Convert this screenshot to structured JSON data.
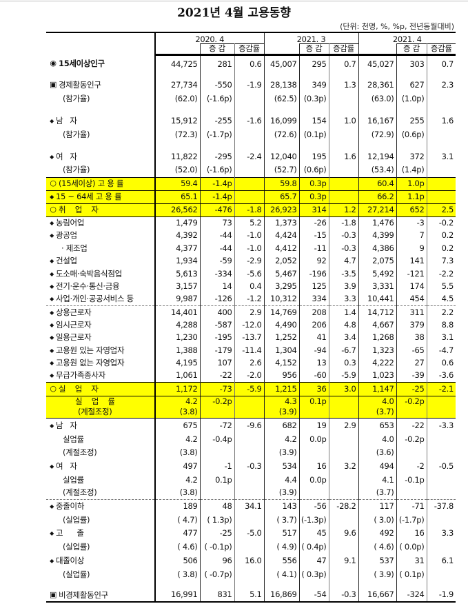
{
  "title": "2021년 4월 고용동향",
  "unit": "(단위: 천명, %, %p, 전년동월대비)",
  "highlight_color": "#ffff00",
  "header": {
    "periods": [
      "2020. 4",
      "2021. 3",
      "2021. 4"
    ],
    "change": "증 감",
    "change_rate": "증감률"
  },
  "rows": [
    {
      "marker": "◉",
      "label": "15세이상인구",
      "values": [
        "44,725",
        "281",
        "0.6",
        "45,007",
        "295",
        "0.7",
        "45,027",
        "303",
        "0.7"
      ]
    },
    {
      "marker": "▣",
      "label": "경제활동인구",
      "values": [
        "27,734",
        "-550",
        "-1.9",
        "28,138",
        "349",
        "1.3",
        "28,361",
        "627",
        "2.3"
      ]
    },
    {
      "marker": "",
      "label": "(참가율)",
      "values": [
        "(62.0)",
        "(-1.6p)",
        "",
        "(62.5)",
        "(0.3p)",
        "",
        "(63.0)",
        "(1.0p)",
        ""
      ]
    },
    {
      "marker": "◆",
      "label": "남   자",
      "values": [
        "15,912",
        "-255",
        "-1.6",
        "16,099",
        "154",
        "1.0",
        "16,167",
        "255",
        "1.6"
      ]
    },
    {
      "marker": "",
      "label": "(참가율)",
      "values": [
        "(72.3)",
        "(-1.7p)",
        "",
        "(72.6)",
        "(0.1p)",
        "",
        "(72.9)",
        "(0.6p)",
        ""
      ]
    },
    {
      "marker": "◆",
      "label": "여   자",
      "values": [
        "11,822",
        "-295",
        "-2.4",
        "12,040",
        "195",
        "1.6",
        "12,194",
        "372",
        "3.1"
      ]
    },
    {
      "marker": "",
      "label": "(참가율)",
      "values": [
        "(52.0)",
        "(-1.6p)",
        "",
        "(52.7)",
        "(0.6p)",
        "",
        "(53.4)",
        "(1.4p)",
        ""
      ]
    },
    {
      "marker": "○",
      "label": "(15세이상) 고 용 률",
      "highlight": true,
      "values": [
        "59.4",
        "-1.4p",
        "",
        "59.8",
        "0.3p",
        "",
        "60.4",
        "1.0p",
        ""
      ]
    },
    {
      "marker": "◆",
      "label": "15 ~ 64세 고 용 률",
      "highlight": true,
      "values": [
        "65.1",
        "-1.4p",
        "",
        "65.7",
        "0.3p",
        "",
        "66.2",
        "1.1p",
        ""
      ]
    },
    {
      "marker": "○",
      "label": "취    업    자",
      "highlight": true,
      "values": [
        "26,562",
        "-476",
        "-1.8",
        "26,923",
        "314",
        "1.2",
        "27,214",
        "652",
        "2.5"
      ]
    },
    {
      "marker": "◆",
      "label": "농림어업",
      "values": [
        "1,479",
        "73",
        "5.2",
        "1,373",
        "-26",
        "-1.8",
        "1,476",
        "-3",
        "-0.2"
      ]
    },
    {
      "marker": "◆",
      "label": "광공업",
      "values": [
        "4,392",
        "-44",
        "-1.0",
        "4,424",
        "-15",
        "-0.3",
        "4,399",
        "7",
        "0.2"
      ]
    },
    {
      "marker": "",
      "label": "· 제조업",
      "values": [
        "4,377",
        "-44",
        "-1.0",
        "4,412",
        "-11",
        "-0.3",
        "4,386",
        "9",
        "0.2"
      ]
    },
    {
      "marker": "◆",
      "label": "건설업",
      "values": [
        "1,934",
        "-59",
        "-2.9",
        "2,052",
        "92",
        "4.7",
        "2,075",
        "141",
        "7.3"
      ]
    },
    {
      "marker": "◆",
      "label": "도소매·숙박음식점업",
      "values": [
        "5,613",
        "-334",
        "-5.6",
        "5,467",
        "-196",
        "-3.5",
        "5,492",
        "-121",
        "-2.2"
      ]
    },
    {
      "marker": "◆",
      "label": "전기·운수·통신·금융",
      "values": [
        "3,157",
        "14",
        "0.4",
        "3,295",
        "125",
        "3.9",
        "3,331",
        "174",
        "5.5"
      ]
    },
    {
      "marker": "◆",
      "label": "사업·개인·공공서비스 등",
      "values": [
        "9,987",
        "-126",
        "-1.2",
        "10,312",
        "334",
        "3.3",
        "10,441",
        "454",
        "4.5"
      ]
    },
    {
      "marker": "◆",
      "label": "상용근로자",
      "values": [
        "14,401",
        "400",
        "2.9",
        "14,769",
        "208",
        "1.4",
        "14,712",
        "311",
        "2.2"
      ]
    },
    {
      "marker": "◆",
      "label": "임시근로자",
      "values": [
        "4,288",
        "-587",
        "-12.0",
        "4,490",
        "206",
        "4.8",
        "4,667",
        "379",
        "8.8"
      ]
    },
    {
      "marker": "◆",
      "label": "일용근로자",
      "values": [
        "1,230",
        "-195",
        "-13.7",
        "1,252",
        "41",
        "3.4",
        "1,268",
        "38",
        "3.1"
      ]
    },
    {
      "marker": "◆",
      "label": "고용원 있는 자영업자",
      "values": [
        "1,388",
        "-179",
        "-11.4",
        "1,304",
        "-94",
        "-6.7",
        "1,323",
        "-65",
        "-4.7"
      ]
    },
    {
      "marker": "◆",
      "label": "고용원 없는 자영업자",
      "values": [
        "4,195",
        "107",
        "2.6",
        "4,152",
        "13",
        "0.3",
        "4,222",
        "27",
        "0.6"
      ]
    },
    {
      "marker": "◆",
      "label": "무급가족종사자",
      "values": [
        "1,061",
        "-22",
        "-2.0",
        "956",
        "-60",
        "-5.9",
        "1,023",
        "-39",
        "-3.6"
      ]
    },
    {
      "marker": "○",
      "label": "실    업    자",
      "highlight": true,
      "values": [
        "1,172",
        "-73",
        "-5.9",
        "1,215",
        "36",
        "3.0",
        "1,147",
        "-25",
        "-2.1"
      ]
    },
    {
      "marker": "",
      "label": "실    업    률",
      "highlight": true,
      "values": [
        "4.2",
        "-0.2p",
        "",
        "4.3",
        "0.1p",
        "",
        "4.0",
        "-0.2p",
        ""
      ]
    },
    {
      "marker": "",
      "label": "(계절조정)",
      "highlight": true,
      "values": [
        "(3.8)",
        "",
        "",
        "(3.9)",
        "",
        "",
        "(3.7)",
        "",
        ""
      ]
    },
    {
      "marker": "◆",
      "label": "남   자",
      "values": [
        "675",
        "-72",
        "-9.6",
        "682",
        "19",
        "2.9",
        "653",
        "-22",
        "-3.3"
      ]
    },
    {
      "marker": "",
      "label": "실업률",
      "values": [
        "4.2",
        "-0.4p",
        "",
        "4.2",
        "0.0p",
        "",
        "4.0",
        "-0.2p",
        ""
      ]
    },
    {
      "marker": "",
      "label": "(계절조정)",
      "values": [
        "(3.8)",
        "",
        "",
        "(3.9)",
        "",
        "",
        "(3.6)",
        "",
        ""
      ]
    },
    {
      "marker": "◆",
      "label": "여   자",
      "values": [
        "497",
        "-1",
        "-0.3",
        "534",
        "16",
        "3.2",
        "494",
        "-2",
        "-0.5"
      ]
    },
    {
      "marker": "",
      "label": "실업률",
      "values": [
        "4.2",
        "0.1p",
        "",
        "4.4",
        "0.0p",
        "",
        "4.1",
        "-0.1p",
        ""
      ]
    },
    {
      "marker": "",
      "label": "(계절조정)",
      "values": [
        "(3.8)",
        "",
        "",
        "(3.9)",
        "",
        "",
        "(3.7)",
        "",
        ""
      ]
    },
    {
      "marker": "◆",
      "label": "중졸이하",
      "values": [
        "189",
        "48",
        "34.1",
        "143",
        "-56",
        "-28.2",
        "117",
        "-71",
        "-37.8"
      ]
    },
    {
      "marker": "",
      "label": "(실업률)",
      "values": [
        "( 4.7)",
        "( 1.3p)",
        "",
        "( 3.7)",
        "(-1.3p)",
        "",
        "( 3.0)",
        "(-1.7p)",
        ""
      ]
    },
    {
      "marker": "◆",
      "label": "고      졸",
      "values": [
        "477",
        "-25",
        "-5.0",
        "517",
        "45",
        "9.6",
        "492",
        "16",
        "3.3"
      ]
    },
    {
      "marker": "",
      "label": "(실업률)",
      "values": [
        "( 4.6)",
        "( -0.1p)",
        "",
        "( 4.9)",
        "( 0.4p)",
        "",
        "( 4.6)",
        "( 0.0p)",
        ""
      ]
    },
    {
      "marker": "◆",
      "label": "대졸이상",
      "values": [
        "506",
        "96",
        "16.0",
        "556",
        "47",
        "9.1",
        "537",
        "31",
        "6.1"
      ]
    },
    {
      "marker": "",
      "label": "(실업률)",
      "values": [
        "( 3.8)",
        "( -0.7p)",
        "",
        "( 4.1)",
        "( 0.3p)",
        "",
        "( 3.9)",
        "( 0.1p)",
        ""
      ]
    },
    {
      "marker": "▣",
      "label": "비경제활동인구",
      "values": [
        "16,991",
        "831",
        "5.1",
        "16,869",
        "-54",
        "-0.3",
        "16,667",
        "-324",
        "-1.9"
      ]
    }
  ]
}
